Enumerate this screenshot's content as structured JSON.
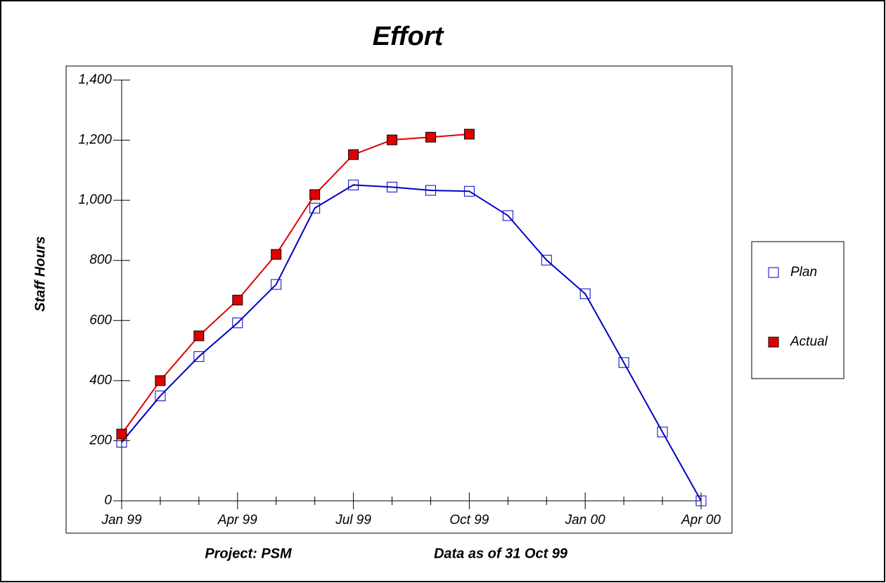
{
  "chart_data": {
    "type": "line",
    "title": "Effort",
    "ylabel": "Staff Hours",
    "footnotes": [
      "Project: PSM",
      "Data as of 31 Oct 99"
    ],
    "categories": [
      "Jan 99",
      null,
      null,
      "Apr 99",
      null,
      null,
      "Jul 99",
      null,
      null,
      "Oct 99",
      null,
      null,
      "Jan 00",
      null,
      null,
      "Apr 00"
    ],
    "series": [
      {
        "name": "Plan",
        "color": "#0000c0",
        "marker": "hollow-square",
        "values": [
          195,
          349,
          480,
          592,
          720,
          974,
          1051,
          1044,
          1033,
          1030,
          949,
          801,
          689,
          460,
          229,
          0
        ]
      },
      {
        "name": "Actual",
        "color": "#e00000",
        "marker": "filled-square",
        "values": [
          222,
          400,
          549,
          668,
          820,
          1019,
          1152,
          1201,
          1210,
          1220,
          null,
          null,
          null,
          null,
          null,
          null
        ]
      }
    ],
    "ylim": [
      0,
      1400
    ],
    "yticks": [
      0,
      200,
      400,
      600,
      800,
      {
        "value": 1000,
        "label": "1,000"
      },
      {
        "value": 1200,
        "label": "1,200"
      },
      {
        "value": 1400,
        "label": "1,400"
      }
    ],
    "grid": false,
    "legend": "right"
  }
}
